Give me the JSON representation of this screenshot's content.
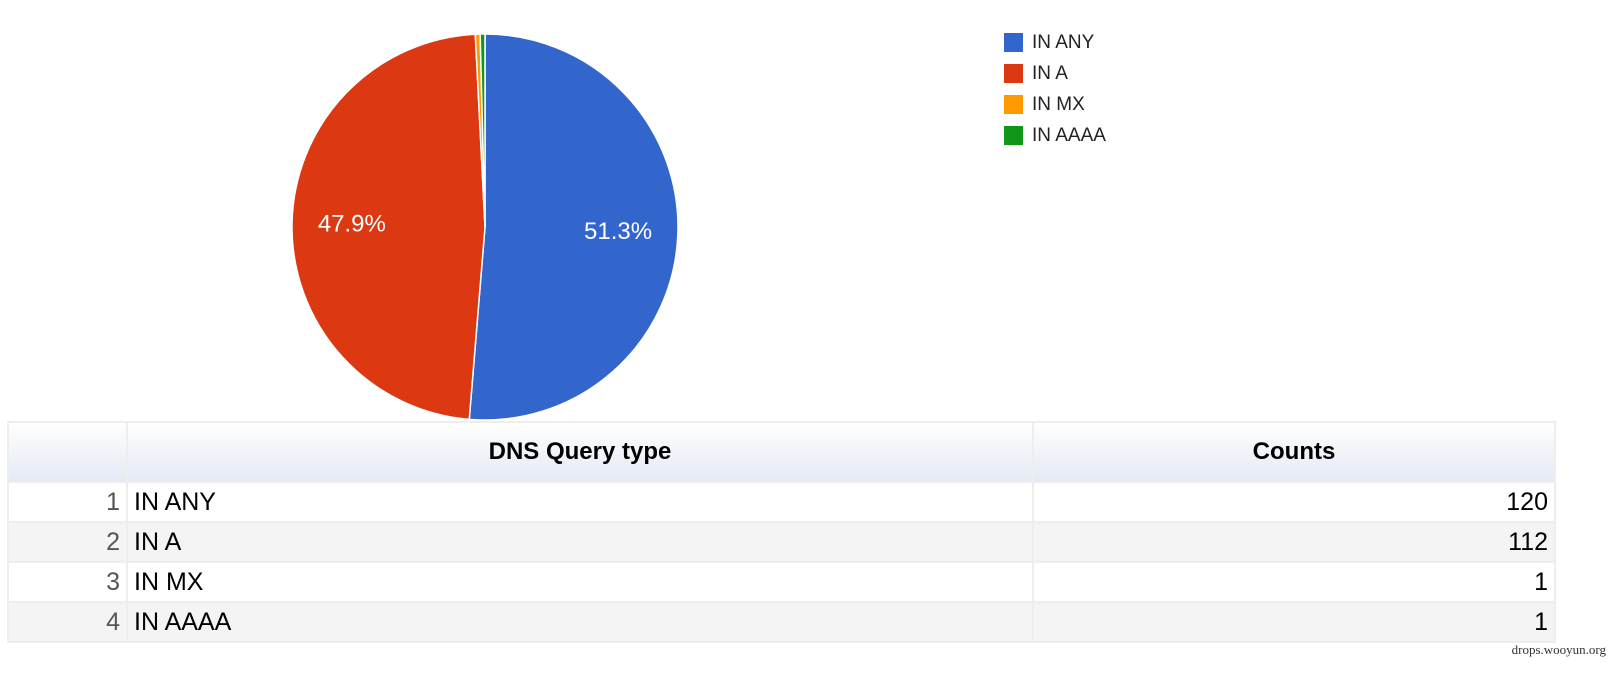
{
  "chart_data": {
    "type": "pie",
    "categories": [
      "IN ANY",
      "IN A",
      "IN MX",
      "IN AAAA"
    ],
    "values": [
      51.3,
      47.9,
      0.4,
      0.4
    ],
    "value_labels": [
      "51.3%",
      "47.9%",
      null,
      null
    ],
    "colors": [
      "#3366cc",
      "#dc3912",
      "#ff9900",
      "#109618"
    ],
    "legend": "right"
  },
  "table": {
    "headers": [
      "DNS Query type",
      "Counts"
    ],
    "rows": [
      [
        1,
        "IN ANY",
        120
      ],
      [
        2,
        "IN A",
        112
      ],
      [
        3,
        "IN MX",
        1
      ],
      [
        4,
        "IN AAAA",
        1
      ]
    ]
  },
  "watermark": "drops.wooyun.org"
}
